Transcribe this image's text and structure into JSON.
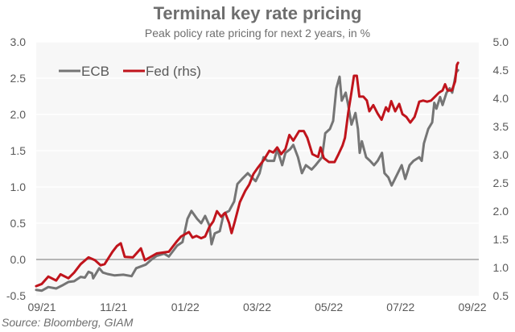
{
  "chart_data": {
    "type": "line",
    "title": "Terminal key rate pricing",
    "subtitle": "Peak policy rate pricing for next 2 years, in %",
    "source": "Source: Bloomberg, GIAM",
    "xlabel": "",
    "ylabel": "",
    "y2label": "",
    "x_ticks": [
      "09/21",
      "11/21",
      "01/22",
      "03/22",
      "05/22",
      "07/22",
      "09/22"
    ],
    "x_unit": "months since 09/21",
    "xlim": [
      0,
      12
    ],
    "ylim": [
      -0.5,
      3.0
    ],
    "y_ticks": [
      "-0.5",
      "0.0",
      "0.5",
      "1.0",
      "1.5",
      "2.0",
      "2.5",
      "3.0"
    ],
    "y2lim": [
      0.5,
      5.0
    ],
    "y2_ticks": [
      "0.5",
      "1.0",
      "1.5",
      "2.0",
      "2.5",
      "3.0",
      "3.5",
      "4.0",
      "4.5",
      "5.0"
    ],
    "grid": true,
    "legend": "top-left",
    "colors": {
      "ecb": "#757575",
      "fed": "#c0141c",
      "zero_line": "#a0a0a0",
      "plot_bg": "#f7f7f7",
      "grid": "#ffffff"
    },
    "series": [
      {
        "name": "ECB",
        "axis": "left",
        "points": [
          [
            -0.16,
            -0.42
          ],
          [
            0.0,
            -0.43
          ],
          [
            0.18,
            -0.38
          ],
          [
            0.4,
            -0.4
          ],
          [
            0.56,
            -0.36
          ],
          [
            0.74,
            -0.31
          ],
          [
            0.9,
            -0.3
          ],
          [
            1.08,
            -0.24
          ],
          [
            1.2,
            -0.25
          ],
          [
            1.3,
            -0.17
          ],
          [
            1.4,
            -0.19
          ],
          [
            1.43,
            -0.26
          ],
          [
            1.6,
            -0.12
          ],
          [
            1.7,
            -0.18
          ],
          [
            1.83,
            -0.2
          ],
          [
            2.03,
            -0.22
          ],
          [
            2.27,
            -0.21
          ],
          [
            2.5,
            -0.23
          ],
          [
            2.63,
            -0.12
          ],
          [
            2.9,
            -0.07
          ],
          [
            3.06,
            0.0
          ],
          [
            3.2,
            0.05
          ],
          [
            3.41,
            0.08
          ],
          [
            3.54,
            0.04
          ],
          [
            3.77,
            0.19
          ],
          [
            3.92,
            0.24
          ],
          [
            4.06,
            0.56
          ],
          [
            4.17,
            0.67
          ],
          [
            4.33,
            0.56
          ],
          [
            4.44,
            0.5
          ],
          [
            4.55,
            0.6
          ],
          [
            4.67,
            0.47
          ],
          [
            4.73,
            0.21
          ],
          [
            4.82,
            0.36
          ],
          [
            4.96,
            0.39
          ],
          [
            5.07,
            0.63
          ],
          [
            5.22,
            0.67
          ],
          [
            5.36,
            0.8
          ],
          [
            5.45,
            1.04
          ],
          [
            5.58,
            1.11
          ],
          [
            5.74,
            1.19
          ],
          [
            5.96,
            1.08
          ],
          [
            6.07,
            1.19
          ],
          [
            6.18,
            1.41
          ],
          [
            6.29,
            1.36
          ],
          [
            6.47,
            1.36
          ],
          [
            6.56,
            1.52
          ],
          [
            6.7,
            1.3
          ],
          [
            6.79,
            1.47
          ],
          [
            6.92,
            1.52
          ],
          [
            7.01,
            1.58
          ],
          [
            7.14,
            1.41
          ],
          [
            7.25,
            1.19
          ],
          [
            7.36,
            1.3
          ],
          [
            7.52,
            1.24
          ],
          [
            7.63,
            1.3
          ],
          [
            7.81,
            1.41
          ],
          [
            7.9,
            1.74
          ],
          [
            8.03,
            1.8
          ],
          [
            8.12,
            1.91
          ],
          [
            8.21,
            2.36
          ],
          [
            8.3,
            2.52
          ],
          [
            8.36,
            2.19
          ],
          [
            8.47,
            2.3
          ],
          [
            8.54,
            2.13
          ],
          [
            8.63,
            1.86
          ],
          [
            8.74,
            2.02
          ],
          [
            8.81,
            1.8
          ],
          [
            8.86,
            1.47
          ],
          [
            8.92,
            1.63
          ],
          [
            9.04,
            1.41
          ],
          [
            9.15,
            1.36
          ],
          [
            9.26,
            1.3
          ],
          [
            9.36,
            1.36
          ],
          [
            9.48,
            1.47
          ],
          [
            9.55,
            1.19
          ],
          [
            9.66,
            1.13
          ],
          [
            9.75,
            1.02
          ],
          [
            9.81,
            1.08
          ],
          [
            9.92,
            1.19
          ],
          [
            10.03,
            1.3
          ],
          [
            10.13,
            1.11
          ],
          [
            10.25,
            1.3
          ],
          [
            10.36,
            1.36
          ],
          [
            10.52,
            1.41
          ],
          [
            10.59,
            1.36
          ],
          [
            10.65,
            1.6
          ],
          [
            10.77,
            1.8
          ],
          [
            10.88,
            1.89
          ],
          [
            10.94,
            2.16
          ],
          [
            11.0,
            2.08
          ],
          [
            11.1,
            2.24
          ],
          [
            11.17,
            2.13
          ],
          [
            11.28,
            2.3
          ],
          [
            11.37,
            2.36
          ],
          [
            11.44,
            2.3
          ],
          [
            11.55,
            2.58
          ],
          [
            11.6,
            2.61
          ]
        ]
      },
      {
        "name": "Fed (rhs)",
        "axis": "right",
        "points": [
          [
            -0.16,
            0.67
          ],
          [
            0.0,
            0.71
          ],
          [
            0.18,
            0.84
          ],
          [
            0.4,
            0.77
          ],
          [
            0.52,
            0.88
          ],
          [
            0.74,
            0.81
          ],
          [
            0.9,
            0.91
          ],
          [
            1.08,
            1.06
          ],
          [
            1.3,
            1.18
          ],
          [
            1.48,
            1.13
          ],
          [
            1.64,
            1.04
          ],
          [
            1.75,
            1.06
          ],
          [
            1.97,
            1.28
          ],
          [
            2.09,
            1.38
          ],
          [
            2.2,
            1.43
          ],
          [
            2.31,
            1.19
          ],
          [
            2.54,
            1.18
          ],
          [
            2.76,
            1.34
          ],
          [
            2.87,
            1.13
          ],
          [
            3.2,
            1.25
          ],
          [
            3.54,
            1.28
          ],
          [
            3.65,
            1.37
          ],
          [
            3.77,
            1.47
          ],
          [
            3.88,
            1.55
          ],
          [
            4.1,
            1.63
          ],
          [
            4.2,
            1.53
          ],
          [
            4.31,
            1.56
          ],
          [
            4.44,
            1.52
          ],
          [
            4.55,
            1.55
          ],
          [
            4.67,
            1.72
          ],
          [
            4.78,
            1.82
          ],
          [
            4.88,
            2.0
          ],
          [
            5.0,
            1.9
          ],
          [
            5.11,
            1.97
          ],
          [
            5.22,
            1.79
          ],
          [
            5.29,
            1.61
          ],
          [
            5.38,
            1.82
          ],
          [
            5.52,
            2.16
          ],
          [
            5.67,
            2.36
          ],
          [
            5.78,
            2.47
          ],
          [
            5.9,
            2.66
          ],
          [
            6.01,
            2.76
          ],
          [
            6.19,
            2.91
          ],
          [
            6.34,
            3.07
          ],
          [
            6.45,
            3.04
          ],
          [
            6.56,
            3.13
          ],
          [
            6.67,
            3.01
          ],
          [
            6.79,
            3.1
          ],
          [
            6.9,
            3.35
          ],
          [
            7.01,
            3.25
          ],
          [
            7.17,
            3.42
          ],
          [
            7.3,
            3.42
          ],
          [
            7.4,
            3.3
          ],
          [
            7.54,
            3.01
          ],
          [
            7.7,
            2.96
          ],
          [
            7.77,
            3.13
          ],
          [
            7.86,
            2.94
          ],
          [
            8.0,
            2.87
          ],
          [
            8.16,
            2.87
          ],
          [
            8.27,
            3.01
          ],
          [
            8.38,
            3.16
          ],
          [
            8.45,
            3.3
          ],
          [
            8.54,
            3.74
          ],
          [
            8.63,
            4.11
          ],
          [
            8.7,
            4.4
          ],
          [
            8.78,
            4.4
          ],
          [
            8.85,
            4.03
          ],
          [
            8.96,
            4.03
          ],
          [
            9.06,
            3.96
          ],
          [
            9.13,
            3.77
          ],
          [
            9.24,
            3.88
          ],
          [
            9.36,
            3.73
          ],
          [
            9.47,
            3.62
          ],
          [
            9.59,
            3.84
          ],
          [
            9.66,
            3.77
          ],
          [
            9.74,
            3.95
          ],
          [
            9.85,
            3.77
          ],
          [
            9.96,
            3.9
          ],
          [
            10.05,
            3.72
          ],
          [
            10.16,
            3.67
          ],
          [
            10.27,
            3.57
          ],
          [
            10.39,
            3.67
          ],
          [
            10.45,
            3.79
          ],
          [
            10.52,
            3.94
          ],
          [
            10.63,
            3.96
          ],
          [
            10.74,
            3.94
          ],
          [
            10.85,
            3.96
          ],
          [
            10.96,
            4.03
          ],
          [
            11.07,
            4.1
          ],
          [
            11.17,
            4.14
          ],
          [
            11.24,
            4.25
          ],
          [
            11.31,
            4.14
          ],
          [
            11.43,
            4.14
          ],
          [
            11.52,
            4.3
          ],
          [
            11.57,
            4.59
          ],
          [
            11.6,
            4.63
          ]
        ]
      }
    ],
    "legend_items": [
      {
        "label": "ECB",
        "color": "#757575"
      },
      {
        "label": "Fed (rhs)",
        "color": "#c0141c"
      }
    ]
  }
}
